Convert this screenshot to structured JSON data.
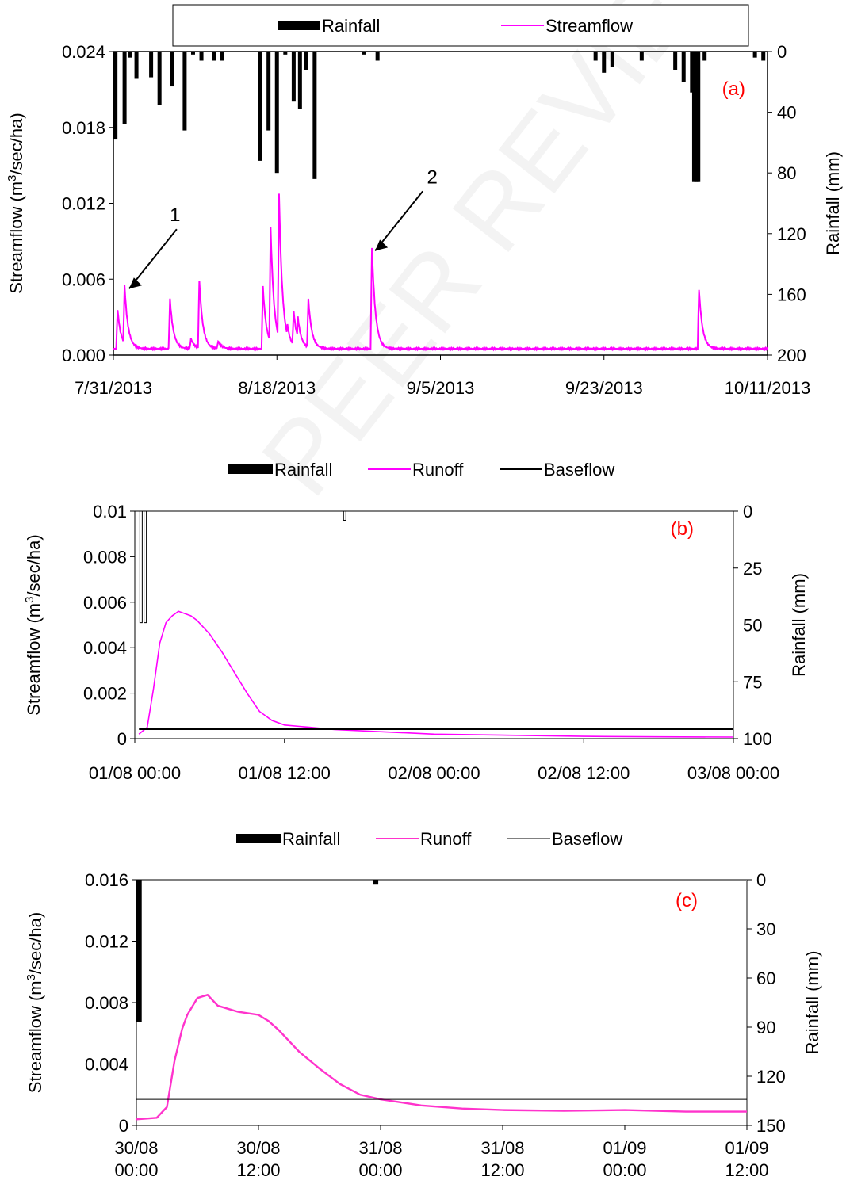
{
  "watermark": "PEER REVIEW",
  "colors": {
    "rainfall": "#000000",
    "streamflow": "#ff00ff",
    "runoff_b": "#ff00ff",
    "runoff_c": "#ff33cc",
    "baseflow": "#000000",
    "panel_tag": "#ff0000"
  },
  "chart_data": [
    {
      "type": "line",
      "panel_label": "(a)",
      "legend": [
        "Rainfall",
        "Streamflow"
      ],
      "legend_placement": "top-boxed",
      "ylabel": "Streamflow  (m3/sec/ha)",
      "ylabel_parts": [
        "Streamflow  (m",
        "3",
        "/sec/ha)"
      ],
      "y2label": "Rainfall (mm)",
      "ylim": [
        0,
        0.024
      ],
      "yticks": [
        "0.000",
        "0.006",
        "0.012",
        "0.018",
        "0.024"
      ],
      "y2lim": [
        0,
        200
      ],
      "y2_inverted": true,
      "y2ticks": [
        "0",
        "40",
        "80",
        "120",
        "160",
        "200"
      ],
      "xlim": [
        "2013-07-31",
        "2013-10-17"
      ],
      "xticks": [
        "7/31/2013",
        "8/18/2013",
        "9/5/2013",
        "9/23/2013",
        "10/11/2013"
      ],
      "annotations": [
        {
          "text": "1",
          "date": "2013-08-01 12:00",
          "flow": 0.0055
        },
        {
          "text": "2",
          "date": "2013-08-30 20:00",
          "flow": 0.0085
        }
      ],
      "rainfall": {
        "name": "Rainfall",
        "dates": [
          "2013-07-31 06:00",
          "2013-08-01 08:00",
          "2013-08-02 00:00",
          "2013-08-02 18:00",
          "2013-08-04 12:00",
          "2013-08-05 12:00",
          "2013-08-07 00:00",
          "2013-08-08 12:00",
          "2013-08-09 12:00",
          "2013-08-10 12:00",
          "2013-08-12 00:00",
          "2013-08-13 00:00",
          "2013-08-17 12:00",
          "2013-08-18 12:00",
          "2013-08-19 12:00",
          "2013-08-20 12:00",
          "2013-08-21 12:00",
          "2013-08-22 06:00",
          "2013-08-23 00:00",
          "2013-08-24 00:00",
          "2013-08-29 20:00",
          "2013-08-31 12:00",
          "2013-09-26 12:00",
          "2013-09-27 12:00",
          "2013-09-28 12:00",
          "2013-10-02 00:00",
          "2013-10-06 00:00",
          "2013-10-07 00:00",
          "2013-10-08 00:00",
          "2013-10-08 06:00",
          "2013-10-08 12:00",
          "2013-10-08 18:00",
          "2013-10-09 12:00",
          "2013-10-15 12:00",
          "2013-10-16 12:00"
        ],
        "values": [
          58,
          48,
          4,
          18,
          17,
          35,
          23,
          52,
          2,
          6,
          6,
          6,
          72,
          52,
          80,
          2,
          33,
          38,
          12,
          84,
          2,
          6,
          6,
          14,
          10,
          6,
          12,
          20,
          27,
          86,
          86,
          86,
          6,
          4,
          6
        ]
      },
      "streamflow": {
        "name": "Streamflow",
        "peaks": [
          {
            "date": "2013-07-31 12:00",
            "flow": 0.0036
          },
          {
            "date": "2013-08-01 08:00",
            "flow": 0.0055
          },
          {
            "date": "2013-08-06 18:00",
            "flow": 0.0044
          },
          {
            "date": "2013-08-09 06:00",
            "flow": 0.0013
          },
          {
            "date": "2013-08-10 06:00",
            "flow": 0.0059
          },
          {
            "date": "2013-08-12 12:00",
            "flow": 0.0011
          },
          {
            "date": "2013-08-17 20:00",
            "flow": 0.0054
          },
          {
            "date": "2013-08-18 18:00",
            "flow": 0.0101
          },
          {
            "date": "2013-08-19 18:00",
            "flow": 0.0128
          },
          {
            "date": "2013-08-20 18:00",
            "flow": 0.0024
          },
          {
            "date": "2013-08-21 12:00",
            "flow": 0.0035
          },
          {
            "date": "2013-08-22 00:00",
            "flow": 0.003
          },
          {
            "date": "2013-08-23 06:00",
            "flow": 0.0044
          },
          {
            "date": "2013-08-30 20:00",
            "flow": 0.0085
          },
          {
            "date": "2013-10-08 20:00",
            "flow": 0.0052
          }
        ],
        "baseline": 0.0005
      }
    },
    {
      "type": "line",
      "panel_label": "(b)",
      "legend": [
        "Rainfall",
        "Runoff",
        "Baseflow"
      ],
      "legend_placement": "top",
      "ylabel": "Streamflow  (m3/sec/ha)",
      "ylabel_parts": [
        "Streamflow  (m",
        "3",
        "/sec/ha)"
      ],
      "y2label": "Rainfall (mm)",
      "ylim": [
        0,
        0.01
      ],
      "yticks": [
        "0",
        "0.002",
        "0.004",
        "0.006",
        "0.008",
        "0.01"
      ],
      "y2lim": [
        0,
        100
      ],
      "y2_inverted": true,
      "y2ticks": [
        "0",
        "25",
        "50",
        "75",
        "100"
      ],
      "xlim": [
        "2013-08-01 00:00",
        "2013-08-03 00:00"
      ],
      "xticks": [
        "01/08 00:00",
        "01/08 12:00",
        "02/08 00:00",
        "02/08 12:00",
        "03/08 00:00"
      ],
      "rainfall": {
        "name": "Rainfall",
        "times": [
          "2013-08-01 00:30",
          "2013-08-01 00:50",
          "2013-08-01 16:50"
        ],
        "values": [
          49,
          49,
          4
        ]
      },
      "runoff": {
        "name": "Runoff",
        "times": [
          "2013-08-01 00:20",
          "2013-08-01 01:00",
          "2013-08-01 01:30",
          "2013-08-01 02:00",
          "2013-08-01 02:30",
          "2013-08-01 03:00",
          "2013-08-01 03:30",
          "2013-08-01 04:00",
          "2013-08-01 04:30",
          "2013-08-01 05:00",
          "2013-08-01 05:30",
          "2013-08-01 06:00",
          "2013-08-01 07:00",
          "2013-08-01 08:00",
          "2013-08-01 09:00",
          "2013-08-01 10:00",
          "2013-08-01 11:00",
          "2013-08-01 12:00",
          "2013-08-01 14:00",
          "2013-08-01 16:00",
          "2013-08-01 20:00",
          "2013-08-02 00:00",
          "2013-08-02 06:00",
          "2013-08-02 12:00",
          "2013-08-02 18:00",
          "2013-08-03 00:00"
        ],
        "values": [
          0.0002,
          0.0005,
          0.0022,
          0.0042,
          0.0051,
          0.0054,
          0.0056,
          0.0055,
          0.0054,
          0.0052,
          0.0049,
          0.0046,
          0.0038,
          0.0029,
          0.002,
          0.0012,
          0.0008,
          0.0006,
          0.0005,
          0.0004,
          0.0003,
          0.0002,
          0.00015,
          0.0001,
          8e-05,
          7e-05
        ]
      },
      "baseflow": {
        "name": "Baseflow",
        "value": 0.00042,
        "from": "2013-08-01 00:20",
        "to": "2013-08-03 00:00"
      }
    },
    {
      "type": "line",
      "panel_label": "(c)",
      "legend": [
        "Rainfall",
        "Runoff",
        "Baseflow"
      ],
      "legend_placement": "top",
      "ylabel": "Streamflow  (m3/sec/ha)",
      "ylabel_parts": [
        "Streamflow  (m",
        "3",
        "/sec/ha)"
      ],
      "y2label": "Rainfall (mm)",
      "ylim": [
        0,
        0.016
      ],
      "yticks": [
        "0",
        "0.004",
        "0.008",
        "0.012",
        "0.016"
      ],
      "y2lim": [
        0,
        150
      ],
      "y2_inverted": true,
      "y2ticks": [
        "0",
        "30",
        "60",
        "90",
        "120",
        "150"
      ],
      "xlim": [
        "2013-08-30 00:00",
        "2013-09-01 12:00"
      ],
      "xticks": [
        [
          "30/08",
          "00:00"
        ],
        [
          "30/08",
          "12:00"
        ],
        [
          "31/08",
          "00:00"
        ],
        [
          "31/08",
          "12:00"
        ],
        [
          "01/09",
          "00:00"
        ],
        [
          "01/09",
          "12:00"
        ]
      ],
      "rainfall": {
        "name": "Rainfall",
        "times": [
          "2013-08-30 00:15",
          "2013-08-30 23:30"
        ],
        "values": [
          87,
          3
        ]
      },
      "runoff": {
        "name": "Runoff",
        "times": [
          "2013-08-30 00:00",
          "2013-08-30 02:00",
          "2013-08-30 03:00",
          "2013-08-30 03:45",
          "2013-08-30 04:30",
          "2013-08-30 05:00",
          "2013-08-30 06:00",
          "2013-08-30 07:00",
          "2013-08-30 08:00",
          "2013-08-30 09:00",
          "2013-08-30 10:00",
          "2013-08-30 11:00",
          "2013-08-30 12:00",
          "2013-08-30 13:00",
          "2013-08-30 14:00",
          "2013-08-30 15:00",
          "2013-08-30 16:00",
          "2013-08-30 18:00",
          "2013-08-30 20:00",
          "2013-08-30 22:00",
          "2013-08-31 00:00",
          "2013-08-31 02:00",
          "2013-08-31 04:00",
          "2013-08-31 08:00",
          "2013-08-31 12:00",
          "2013-08-31 18:00",
          "2013-09-01 00:00",
          "2013-09-01 06:00",
          "2013-09-01 12:00"
        ],
        "values": [
          0.0004,
          0.0005,
          0.0012,
          0.0042,
          0.0063,
          0.0072,
          0.0083,
          0.0085,
          0.0078,
          0.0076,
          0.0074,
          0.0073,
          0.0072,
          0.0068,
          0.0062,
          0.0055,
          0.0048,
          0.0037,
          0.0027,
          0.002,
          0.0017,
          0.0015,
          0.0013,
          0.0011,
          0.001,
          0.00095,
          0.001,
          0.0009,
          0.0009
        ]
      },
      "baseflow": {
        "name": "Baseflow",
        "value": 0.0017,
        "from": "2013-08-30 00:00",
        "to": "2013-09-01 12:00"
      }
    }
  ]
}
